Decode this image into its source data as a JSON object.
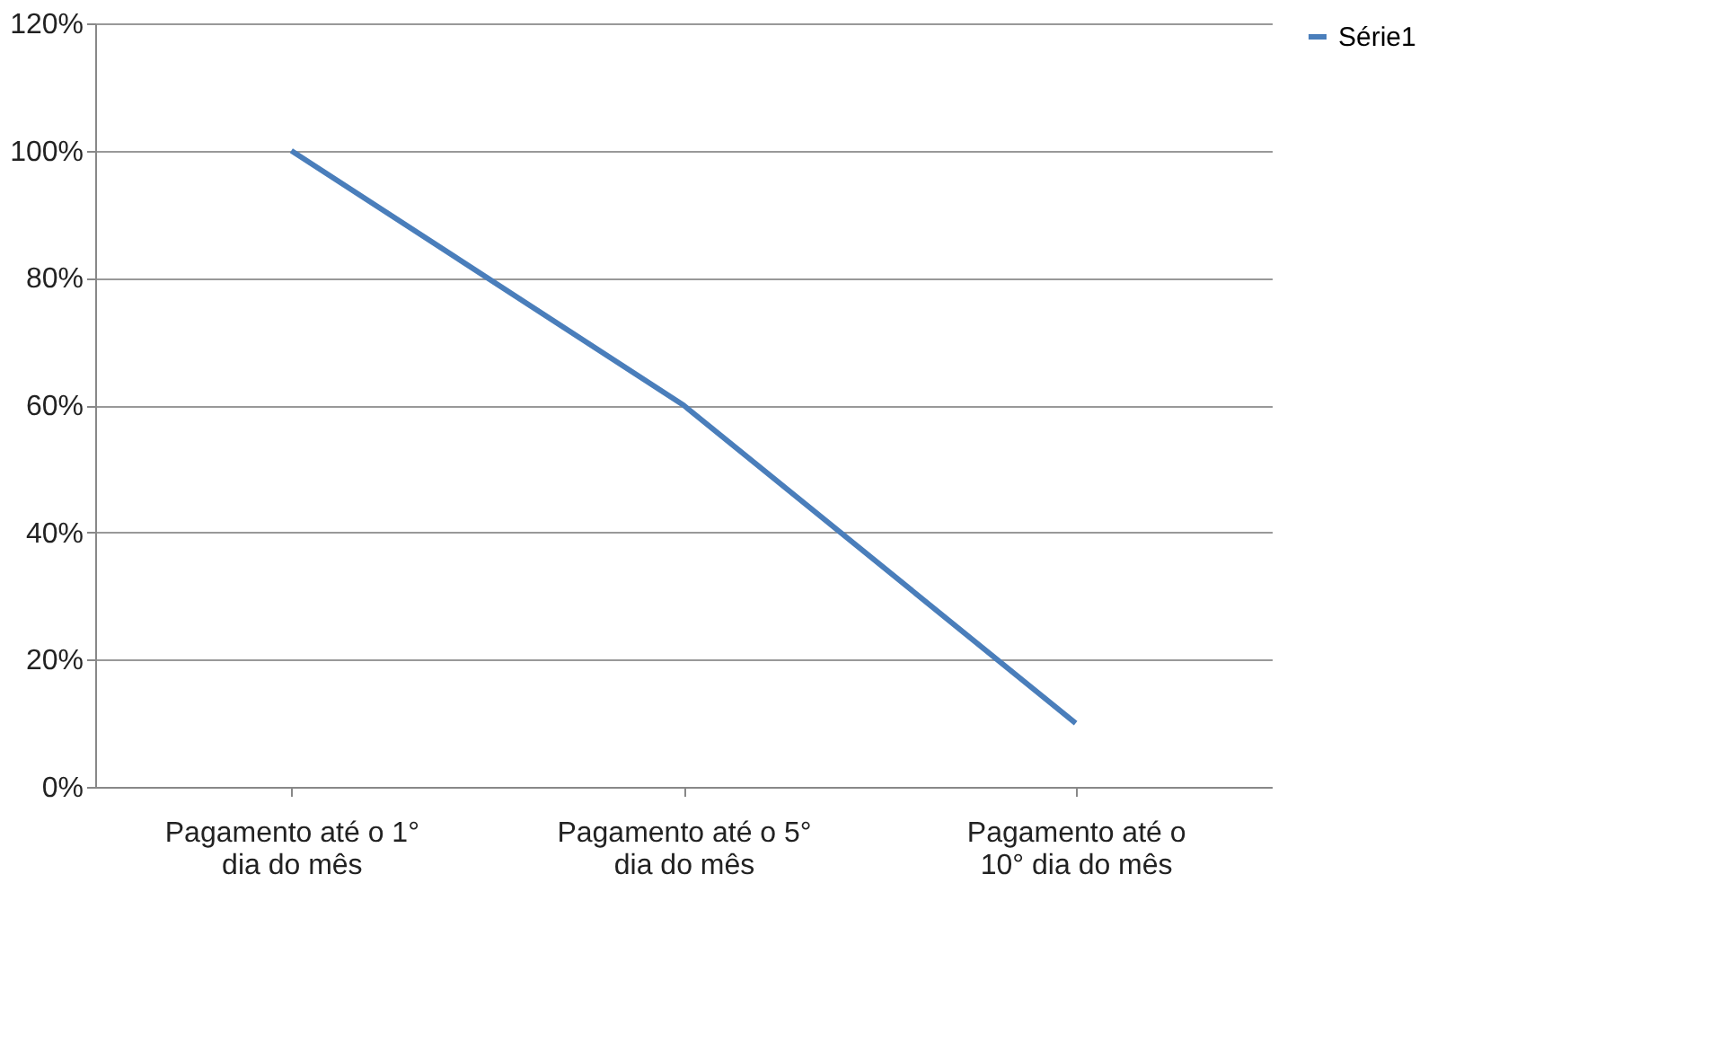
{
  "chart_data": {
    "type": "line",
    "categories": [
      "Pagamento até o 1° dia do mês",
      "Pagamento até o 5° dia do mês",
      "Pagamento até o 10° dia do mês"
    ],
    "series": [
      {
        "name": "Série1",
        "color": "#4a7ebb",
        "values": [
          100,
          60,
          10
        ]
      }
    ],
    "ylim": [
      0,
      120
    ],
    "yticks": [
      {
        "value": 0,
        "label": "0%"
      },
      {
        "value": 20,
        "label": "20%"
      },
      {
        "value": 40,
        "label": "40%"
      },
      {
        "value": 60,
        "label": "60%"
      },
      {
        "value": 80,
        "label": "80%"
      },
      {
        "value": 100,
        "label": "100%"
      },
      {
        "value": 120,
        "label": "120%"
      }
    ],
    "grid": "y",
    "legend": "right",
    "marker": "none",
    "line_style": "solid"
  }
}
